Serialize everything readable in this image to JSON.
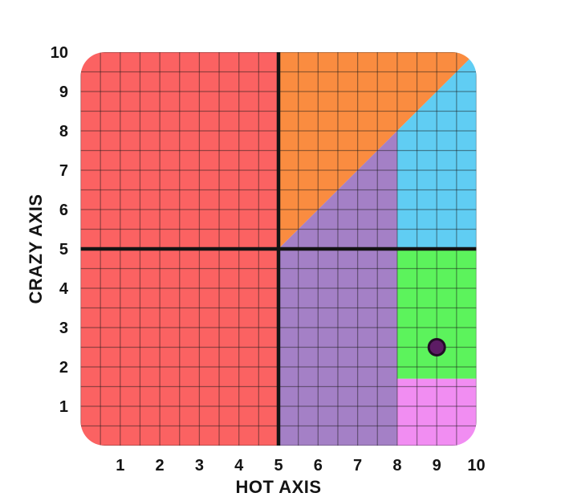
{
  "chart_data": {
    "type": "region-scatter",
    "title": "",
    "xlabel": "HOT AXIS",
    "ylabel": "CRAZY AXIS",
    "xlim": [
      0,
      10
    ],
    "ylim": [
      0,
      10
    ],
    "x_ticks": [
      "1",
      "2",
      "3",
      "4",
      "5",
      "6",
      "7",
      "8",
      "9",
      "10"
    ],
    "y_ticks": [
      "1",
      "2",
      "3",
      "4",
      "5",
      "6",
      "7",
      "8",
      "9",
      "10"
    ],
    "grid_step": 0.5,
    "grid_on": true,
    "grid_color": "rgba(25,25,25,0.45)",
    "divider_color": "#141414",
    "divider_lines": [
      {
        "axis": "x",
        "value": 5
      },
      {
        "axis": "y",
        "value": 5
      }
    ],
    "regions": [
      {
        "name": "red",
        "color": "#FB6262",
        "points": [
          [
            0,
            0
          ],
          [
            5,
            0
          ],
          [
            5,
            10
          ],
          [
            0,
            10
          ]
        ]
      },
      {
        "name": "orange",
        "color": "#FA8C40",
        "points": [
          [
            5,
            5
          ],
          [
            5,
            10
          ],
          [
            10,
            10
          ]
        ]
      },
      {
        "name": "purple",
        "color": "#A480C6",
        "points": [
          [
            5,
            0
          ],
          [
            5,
            5
          ],
          [
            8,
            8
          ],
          [
            8,
            0
          ]
        ]
      },
      {
        "name": "blue",
        "color": "#60CDF3",
        "points": [
          [
            8,
            5
          ],
          [
            8,
            8
          ],
          [
            10,
            10
          ],
          [
            10,
            5
          ]
        ]
      },
      {
        "name": "green",
        "color": "#5CF35C",
        "points": [
          [
            8,
            1.7
          ],
          [
            10,
            1.7
          ],
          [
            10,
            5
          ],
          [
            8,
            5
          ]
        ]
      },
      {
        "name": "magenta",
        "color": "#F18DF2",
        "points": [
          [
            8,
            0
          ],
          [
            10,
            0
          ],
          [
            10,
            1.7
          ],
          [
            8,
            1.7
          ]
        ]
      }
    ],
    "points": [
      {
        "x": 9,
        "y": 2.5,
        "fill": "#5C1C64",
        "stroke": "#220C26",
        "radius_px": 10
      }
    ]
  }
}
